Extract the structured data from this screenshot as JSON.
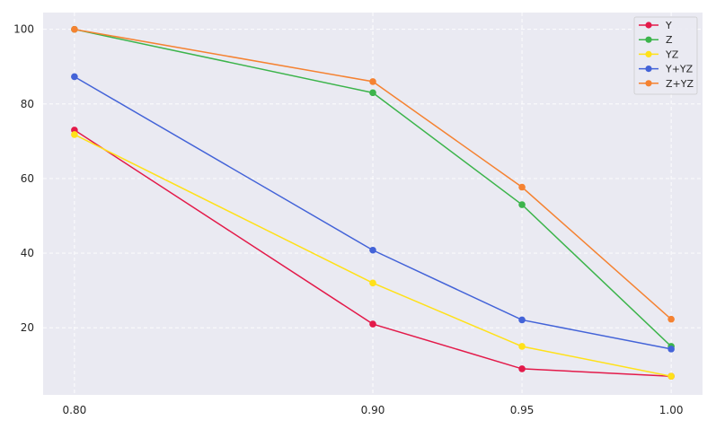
{
  "chart_data": {
    "type": "line",
    "title": "",
    "xlabel": "",
    "ylabel": "",
    "x": [
      0.8,
      0.9,
      0.95,
      1.0
    ],
    "x_tick_labels": [
      "0.80",
      "0.90",
      "0.95",
      "1.00"
    ],
    "y_ticks": [
      20,
      40,
      60,
      80,
      100
    ],
    "ylim": [
      2,
      104.5
    ],
    "xlim": [
      0.7895,
      1.0105
    ],
    "grid": true,
    "legend_position": "top-right",
    "background_color": "#eaeaf2",
    "series": [
      {
        "name": "Y",
        "color": "#e31a4a",
        "values": [
          73,
          21,
          9,
          7
        ]
      },
      {
        "name": "Z",
        "color": "#3cb44b",
        "values": [
          100,
          83,
          53,
          15
        ]
      },
      {
        "name": "YZ",
        "color": "#ffe119",
        "values": [
          71.8,
          32,
          15,
          7
        ]
      },
      {
        "name": "Y+YZ",
        "color": "#4363d8",
        "values": [
          87.3,
          40.8,
          22.1,
          14.3
        ]
      },
      {
        "name": "Z+YZ",
        "color": "#f58231",
        "values": [
          100,
          86,
          57.7,
          22.3
        ]
      }
    ]
  }
}
